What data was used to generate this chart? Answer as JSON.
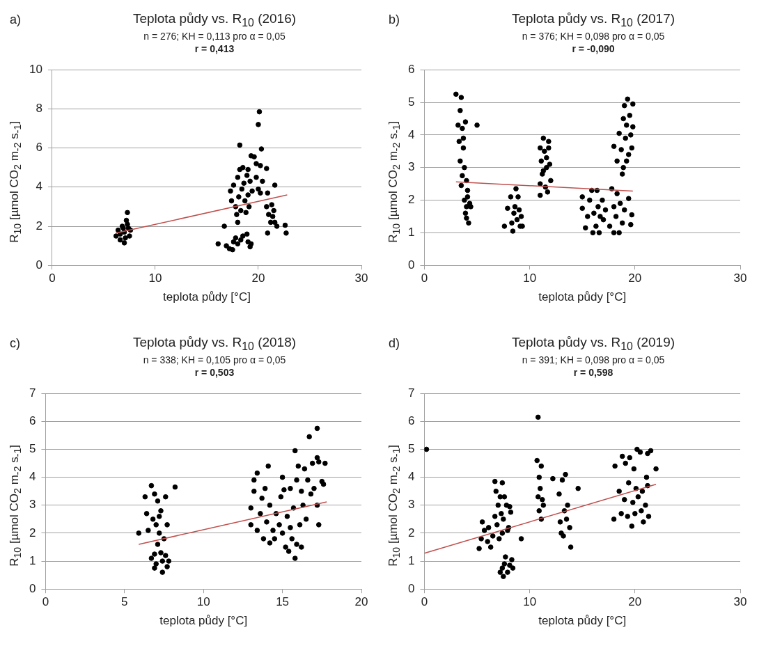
{
  "chart_data": [
    {
      "type": "scatter",
      "title": "Teplota půdy vs. R$_{10}$ (2016)",
      "subtitle": "n = 276; KH = 0,113 pro α = 0,05",
      "annotations": [
        "a)",
        "r = 0,413"
      ],
      "xlabel": "teplota půdy [°C]",
      "ylabel": "R$_{10}$ [µmol CO$_{2}$ m$_{-2}$ s$_{-1}$]",
      "xlim": [
        0,
        30
      ],
      "xticks": [
        0,
        10,
        20,
        30
      ],
      "ylim": [
        0,
        10
      ],
      "yticks": [
        0,
        2,
        4,
        6,
        8,
        10
      ],
      "grid": "y",
      "series": [
        {
          "type": "scatter",
          "color": "#000000",
          "marker": "circle",
          "x": [
            6.2,
            6.4,
            6.6,
            6.8,
            7.0,
            7.1,
            7.2,
            7.3,
            7.4,
            7.5,
            7.0,
            6.6,
            7.6,
            6.9,
            7.3,
            16.1,
            16.7,
            16.9,
            17.2,
            17.5,
            17.6,
            17.8,
            18.0,
            18.3,
            18.5,
            18.9,
            19.0,
            19.2,
            19.3,
            17.3,
            17.4,
            17.6,
            17.8,
            17.9,
            18.0,
            18.1,
            18.2,
            18.2,
            18.3,
            18.4,
            18.5,
            18.6,
            18.7,
            18.8,
            18.9,
            19.0,
            19.0,
            19.1,
            19.2,
            19.3,
            19.4,
            18.0,
            19.6,
            19.8,
            19.8,
            20.0,
            20.1,
            20.3,
            20.2,
            20.0,
            20.4,
            20.2,
            20.8,
            20.8,
            20.9,
            20.9,
            21.0,
            21.2,
            21.3,
            21.5,
            21.6,
            21.6,
            21.8,
            21.4,
            22.6,
            22.7
          ],
          "values": [
            1.5,
            1.8,
            1.6,
            2.0,
            1.7,
            1.4,
            2.3,
            2.7,
            1.9,
            1.5,
            1.15,
            1.3,
            1.8,
            1.9,
            2.1,
            1.1,
            2.0,
            1.0,
            0.85,
            0.8,
            1.2,
            1.4,
            1.1,
            1.3,
            1.5,
            1.6,
            1.2,
            0.95,
            1.1,
            3.8,
            3.3,
            4.1,
            3.0,
            2.6,
            4.5,
            3.5,
            4.9,
            6.15,
            2.8,
            3.9,
            5.0,
            4.2,
            3.3,
            2.7,
            4.6,
            3.6,
            4.9,
            3.0,
            4.3,
            5.6,
            3.8,
            2.2,
            5.55,
            4.5,
            5.2,
            7.2,
            7.85,
            5.95,
            5.1,
            3.9,
            4.3,
            3.7,
            4.95,
            3.0,
            3.7,
            1.65,
            2.6,
            2.2,
            3.1,
            2.8,
            4.1,
            2.2,
            2.0,
            2.5,
            2.05,
            1.65
          ]
        },
        {
          "type": "line",
          "color": "#c0504d",
          "marker": "none",
          "x": [
            6.2,
            22.8
          ],
          "values": [
            1.65,
            3.6
          ]
        }
      ]
    },
    {
      "type": "scatter",
      "title": "Teplota půdy vs. R$_{10}$ (2017)",
      "subtitle": "n = 376; KH = 0,098 pro α = 0,05",
      "annotations": [
        "b)",
        "r = -0,090"
      ],
      "xlabel": "teplota půdy [°C]",
      "ylabel": "R$_{10}$ [µmol CO$_{2}$ m$_{-2}$ s$_{-1}$]",
      "xlim": [
        0,
        30
      ],
      "xticks": [
        0,
        10,
        20,
        30
      ],
      "ylim": [
        0,
        6
      ],
      "yticks": [
        0,
        1,
        2,
        3,
        4,
        5,
        6
      ],
      "grid": "y",
      "series": [
        {
          "type": "scatter",
          "color": "#000000",
          "marker": "circle",
          "x": [
            3.0,
            3.5,
            3.4,
            3.2,
            3.6,
            3.9,
            3.3,
            3.7,
            3.4,
            3.8,
            3.6,
            3.5,
            4.0,
            4.1,
            3.8,
            4.0,
            4.3,
            3.9,
            4.2,
            4.0,
            4.4,
            5.0,
            3.7,
            4.1,
            7.6,
            7.9,
            8.2,
            8.3,
            8.4,
            8.5,
            8.6,
            8.7,
            8.8,
            8.9,
            9.0,
            9.1,
            9.2,
            9.3,
            11.0,
            11.1,
            11.0,
            11.0,
            11.2,
            11.3,
            11.4,
            11.5,
            11.6,
            11.7,
            11.8,
            11.8,
            11.9,
            12.0,
            11.3,
            11.6,
            15.0,
            15.0,
            15.3,
            15.5,
            15.7,
            15.9,
            16.0,
            16.1,
            16.3,
            16.4,
            16.5,
            16.6,
            16.7,
            16.9,
            17.0,
            17.2,
            17.6,
            17.8,
            18.0,
            18.0,
            18.2,
            18.3,
            18.5,
            18.6,
            18.8,
            18.0,
            18.3,
            18.5,
            18.7,
            18.8,
            18.9,
            18.9,
            19.0,
            19.1,
            19.2,
            19.3,
            19.4,
            19.5,
            19.6,
            19.7,
            19.8,
            19.8,
            19.4,
            19.7,
            19.6,
            19.2,
            19.0
          ],
          "values": [
            5.25,
            5.15,
            4.75,
            4.3,
            4.2,
            4.4,
            3.8,
            3.6,
            3.2,
            3.0,
            2.75,
            2.45,
            2.6,
            2.3,
            2.0,
            1.8,
            1.9,
            1.6,
            1.3,
            1.45,
            1.8,
            4.3,
            3.9,
            2.1,
            1.2,
            1.75,
            2.1,
            1.3,
            1.05,
            1.6,
            1.8,
            2.35,
            1.4,
            2.1,
            1.7,
            1.2,
            1.5,
            1.2,
            3.6,
            3.2,
            2.5,
            2.15,
            2.8,
            3.9,
            3.5,
            2.4,
            3.0,
            2.25,
            3.8,
            3.6,
            3.1,
            2.6,
            2.9,
            3.3,
            2.1,
            1.75,
            1.15,
            1.5,
            2.0,
            2.3,
            1.0,
            1.6,
            1.2,
            2.3,
            1.8,
            1.0,
            1.5,
            2.0,
            1.4,
            1.7,
            1.2,
            2.35,
            1.0,
            1.8,
            1.5,
            2.2,
            1.0,
            1.9,
            1.3,
            3.65,
            3.2,
            4.05,
            3.55,
            2.8,
            3.0,
            4.5,
            4.9,
            3.9,
            4.3,
            5.1,
            3.4,
            4.6,
            4.0,
            3.6,
            4.95,
            4.25,
            2.05,
            1.55,
            1.25,
            3.2,
            1.7
          ]
        },
        {
          "type": "line",
          "color": "#c0504d",
          "marker": "none",
          "x": [
            3.0,
            19.8
          ],
          "values": [
            2.56,
            2.28
          ]
        }
      ]
    },
    {
      "type": "scatter",
      "title": "Teplota půdy vs. R$_{10}$ (2018)",
      "subtitle": "n = 338; KH = 0,105 pro α = 0,05",
      "annotations": [
        "c)",
        "r = 0,503"
      ],
      "xlabel": "teplota půdy [°C]",
      "ylabel": "R$_{10}$ [µmol CO$_{2}$ m$_{-2}$ s$_{-1}$]",
      "xlim": [
        0,
        20
      ],
      "xticks": [
        0,
        5,
        10,
        15,
        20
      ],
      "ylim": [
        0,
        7
      ],
      "yticks": [
        0,
        1,
        2,
        3,
        4,
        5,
        6,
        7
      ],
      "grid": "y",
      "series": [
        {
          "type": "scatter",
          "color": "#000000",
          "marker": "circle",
          "x": [
            5.9,
            6.3,
            6.4,
            6.5,
            6.7,
            6.8,
            6.7,
            6.9,
            6.9,
            7.0,
            7.1,
            7.0,
            7.1,
            7.2,
            7.3,
            7.3,
            7.4,
            7.4,
            7.5,
            7.6,
            7.6,
            7.7,
            7.7,
            7.8,
            8.2,
            7.2,
            6.9,
            13.0,
            13.0,
            13.2,
            13.2,
            13.4,
            13.4,
            13.6,
            13.7,
            13.8,
            13.9,
            14.0,
            14.1,
            14.2,
            14.2,
            14.4,
            14.5,
            14.6,
            14.8,
            14.9,
            15.0,
            15.0,
            15.1,
            15.2,
            15.3,
            15.4,
            15.5,
            15.5,
            15.6,
            15.7,
            15.8,
            15.8,
            15.9,
            15.9,
            16.0,
            16.1,
            16.2,
            16.2,
            16.3,
            16.4,
            16.5,
            16.6,
            16.7,
            16.8,
            16.9,
            17.0,
            17.2,
            17.2,
            17.2,
            17.3,
            17.3,
            17.7,
            17.6,
            17.5
          ],
          "values": [
            2.0,
            3.3,
            2.7,
            2.1,
            3.7,
            2.5,
            1.1,
            3.4,
            0.75,
            2.3,
            3.15,
            0.9,
            1.6,
            2.6,
            2.8,
            1.3,
            0.6,
            1.0,
            1.8,
            3.3,
            1.2,
            0.8,
            2.3,
            1.0,
            3.65,
            2.0,
            1.25,
            2.9,
            2.3,
            3.9,
            3.5,
            4.15,
            2.1,
            2.7,
            3.25,
            1.8,
            3.6,
            2.4,
            4.4,
            3.0,
            1.65,
            2.1,
            1.8,
            2.7,
            2.3,
            3.3,
            4.0,
            2.0,
            3.55,
            1.5,
            2.6,
            1.35,
            3.6,
            2.2,
            1.8,
            2.9,
            1.1,
            4.95,
            3.9,
            1.6,
            4.4,
            2.3,
            3.5,
            1.5,
            3.0,
            4.3,
            2.5,
            3.9,
            5.45,
            3.4,
            4.5,
            3.6,
            4.7,
            5.75,
            3.0,
            2.3,
            4.55,
            4.5,
            3.75,
            3.85
          ]
        },
        {
          "type": "line",
          "color": "#c0504d",
          "marker": "none",
          "x": [
            5.9,
            17.8
          ],
          "values": [
            1.6,
            3.12
          ]
        }
      ]
    },
    {
      "type": "scatter",
      "title": "Teplota půdy vs. R$_{10}$ (2019)",
      "subtitle": "n = 391; KH = 0,098 pro α = 0,05",
      "annotations": [
        "d)",
        "r = 0,598"
      ],
      "xlabel": "teplota půdy [°C]",
      "ylabel": "R$_{10}$ [µmol CO$_{2}$ m$_{-2}$ s$_{-1}$]",
      "xlim": [
        0,
        30
      ],
      "xticks": [
        0,
        10,
        20,
        30
      ],
      "ylim": [
        0,
        7
      ],
      "yticks": [
        0,
        1,
        2,
        3,
        4,
        5,
        6,
        7
      ],
      "grid": "y",
      "series": [
        {
          "type": "scatter",
          "color": "#000000",
          "marker": "circle",
          "x": [
            0.2,
            5.2,
            5.4,
            5.5,
            5.7,
            6.0,
            6.1,
            6.3,
            6.5,
            6.7,
            6.7,
            6.8,
            6.9,
            7.0,
            7.1,
            7.2,
            7.3,
            7.4,
            7.4,
            7.5,
            7.6,
            7.2,
            7.4,
            7.5,
            7.6,
            7.7,
            7.9,
            8.1,
            8.3,
            8.4,
            7.8,
            7.9,
            8.1,
            8.0,
            8.2,
            9.2,
            10.7,
            10.8,
            10.8,
            10.9,
            10.9,
            11.0,
            11.1,
            11.1,
            11.3,
            11.2,
            12.2,
            12.8,
            12.9,
            13.0,
            13.1,
            13.2,
            13.3,
            13.4,
            13.5,
            13.6,
            13.8,
            13.9,
            14.6,
            18.0,
            18.1,
            18.5,
            18.7,
            18.8,
            19.0,
            19.1,
            19.3,
            19.4,
            19.5,
            19.7,
            19.8,
            19.9,
            20.0,
            20.1,
            20.2,
            20.3,
            20.5,
            20.6,
            20.7,
            20.8,
            21.0,
            21.1,
            21.2,
            21.3,
            21.5,
            21.2,
            22.0
          ],
          "values": [
            5.0,
            1.45,
            1.8,
            2.4,
            2.1,
            1.7,
            2.2,
            1.5,
            1.9,
            2.6,
            3.85,
            3.5,
            2.3,
            3.0,
            1.8,
            3.3,
            2.7,
            2.0,
            3.8,
            2.5,
            3.3,
            0.6,
            0.75,
            0.45,
            0.9,
            1.15,
            0.6,
            0.85,
            1.05,
            0.75,
            3.0,
            2.1,
            2.95,
            2.2,
            2.75,
            1.8,
            4.6,
            6.15,
            3.3,
            4.0,
            2.8,
            3.6,
            2.5,
            4.4,
            3.0,
            3.2,
            3.95,
            3.4,
            2.4,
            2.0,
            3.9,
            1.9,
            2.8,
            4.1,
            2.5,
            3.0,
            2.2,
            1.5,
            3.6,
            2.5,
            4.4,
            3.5,
            2.7,
            4.75,
            3.2,
            4.5,
            2.6,
            3.8,
            4.7,
            2.25,
            3.1,
            4.3,
            2.7,
            3.6,
            5.0,
            3.3,
            4.9,
            2.8,
            3.5,
            2.4,
            3.0,
            4.0,
            4.85,
            2.6,
            4.95,
            3.7,
            4.3
          ]
        },
        {
          "type": "line",
          "color": "#c0504d",
          "marker": "none",
          "x": [
            0,
            22
          ],
          "values": [
            1.28,
            3.75
          ]
        }
      ]
    }
  ]
}
